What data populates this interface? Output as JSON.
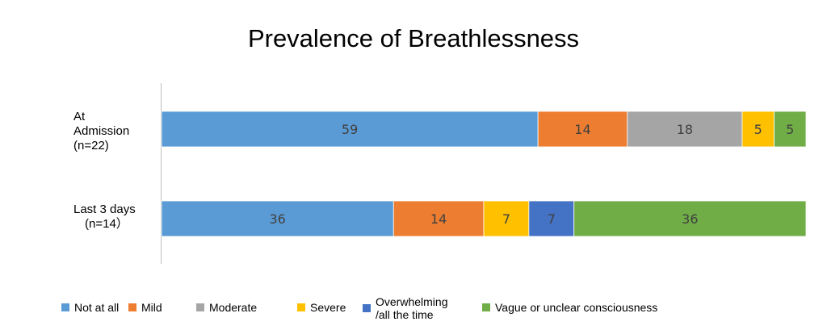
{
  "chart_data": {
    "type": "bar",
    "orientation": "horizontal",
    "stacked": true,
    "title": "Prevalence of Breathlessness",
    "categories": [
      [
        "At",
        "Admission",
        "(n=22)"
      ],
      [
        "Last 3 days",
        "(n=14）"
      ]
    ],
    "series": [
      {
        "name": "Not at all",
        "color": "#5B9BD5",
        "values": [
          59,
          36
        ]
      },
      {
        "name": "Mild",
        "color": "#ED7D31",
        "values": [
          14,
          14
        ]
      },
      {
        "name": "Moderate",
        "color": "#A5A5A5",
        "values": [
          18,
          0
        ]
      },
      {
        "name": "Severe",
        "color": "#FFC000",
        "values": [
          5,
          7
        ]
      },
      {
        "name": "Overwhelming\n/all the time",
        "color": "#4472C4",
        "values": [
          0,
          7
        ]
      },
      {
        "name": "Vague or unclear consciousness",
        "color": "#70AD47",
        "values": [
          5,
          36
        ]
      }
    ],
    "data_labels": [
      [
        "59",
        "14",
        "18",
        "5",
        "",
        "5"
      ],
      [
        "36",
        "14",
        "",
        "7",
        "7",
        "36"
      ]
    ],
    "legend_position": "bottom",
    "grid": false
  }
}
